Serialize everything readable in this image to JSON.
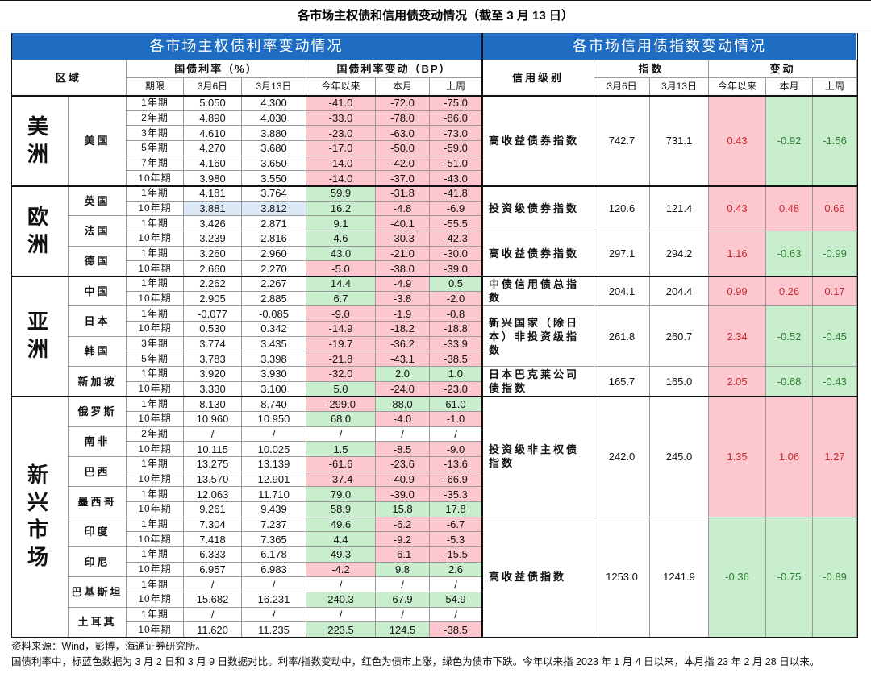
{
  "title": "各市场主权债和信用债变动情况（截至 3 月 13 日）",
  "left": {
    "header": "各市场主权债利率变动情况",
    "columns": {
      "region": "区域",
      "rate": "国债利率（%）",
      "change": "国债利率变动（BP）",
      "term": "期限",
      "d1": "3月6日",
      "d2": "3月13日",
      "ytd": "今年以来",
      "mtd": "本月",
      "wtd": "上周"
    },
    "colors": {
      "positive": "#c9eecd",
      "negative": "#fcc7ce",
      "highlight": "#dde9f6"
    },
    "regions": [
      {
        "name": "美洲",
        "countries": [
          {
            "name": "美国",
            "rows": [
              {
                "term": "1年期",
                "values": [
                  "5.050",
                  "4.300",
                  "-41.0",
                  "-72.0",
                  "-75.0"
                ]
              },
              {
                "term": "2年期",
                "values": [
                  "4.890",
                  "4.030",
                  "-33.0",
                  "-78.0",
                  "-86.0"
                ]
              },
              {
                "term": "3年期",
                "values": [
                  "4.610",
                  "3.880",
                  "-23.0",
                  "-63.0",
                  "-73.0"
                ]
              },
              {
                "term": "5年期",
                "values": [
                  "4.270",
                  "3.680",
                  "-17.0",
                  "-50.0",
                  "-59.0"
                ]
              },
              {
                "term": "7年期",
                "values": [
                  "4.160",
                  "3.650",
                  "-14.0",
                  "-42.0",
                  "-51.0"
                ]
              },
              {
                "term": "10年期",
                "values": [
                  "3.980",
                  "3.550",
                  "-14.0",
                  "-37.0",
                  "-43.0"
                ]
              }
            ]
          }
        ]
      },
      {
        "name": "欧洲",
        "countries": [
          {
            "name": "英国",
            "rows": [
              {
                "term": "1年期",
                "values": [
                  "4.181",
                  "3.764",
                  "59.9",
                  "-31.8",
                  "-41.8"
                ]
              },
              {
                "term": "10年期",
                "values": [
                  "3.881",
                  "3.812",
                  "16.2",
                  "-4.8",
                  "-6.9"
                ],
                "highlight": true
              }
            ]
          },
          {
            "name": "法国",
            "rows": [
              {
                "term": "1年期",
                "values": [
                  "3.426",
                  "2.871",
                  "9.1",
                  "-40.1",
                  "-55.5"
                ]
              },
              {
                "term": "10年期",
                "values": [
                  "3.239",
                  "2.816",
                  "4.6",
                  "-30.3",
                  "-42.3"
                ]
              }
            ]
          },
          {
            "name": "德国",
            "rows": [
              {
                "term": "1年期",
                "values": [
                  "3.260",
                  "2.960",
                  "43.0",
                  "-21.0",
                  "-30.0"
                ]
              },
              {
                "term": "10年期",
                "values": [
                  "2.660",
                  "2.270",
                  "-5.0",
                  "-38.0",
                  "-39.0"
                ]
              }
            ]
          }
        ]
      },
      {
        "name": "亚洲",
        "countries": [
          {
            "name": "中国",
            "rows": [
              {
                "term": "1年期",
                "values": [
                  "2.262",
                  "2.267",
                  "14.4",
                  "-4.9",
                  "0.5"
                ]
              },
              {
                "term": "10年期",
                "values": [
                  "2.905",
                  "2.885",
                  "6.7",
                  "-3.8",
                  "-2.0"
                ]
              }
            ]
          },
          {
            "name": "日本",
            "rows": [
              {
                "term": "1年期",
                "values": [
                  "-0.077",
                  "-0.085",
                  "-9.0",
                  "-1.9",
                  "-0.8"
                ]
              },
              {
                "term": "10年期",
                "values": [
                  "0.530",
                  "0.342",
                  "-14.9",
                  "-18.2",
                  "-18.8"
                ]
              }
            ]
          },
          {
            "name": "韩国",
            "rows": [
              {
                "term": "3年期",
                "values": [
                  "3.774",
                  "3.435",
                  "-19.7",
                  "-36.2",
                  "-33.9"
                ]
              },
              {
                "term": "5年期",
                "values": [
                  "3.783",
                  "3.398",
                  "-21.8",
                  "-43.1",
                  "-38.5"
                ]
              }
            ]
          },
          {
            "name": "新加坡",
            "rows": [
              {
                "term": "1年期",
                "values": [
                  "3.920",
                  "3.930",
                  "-32.0",
                  "2.0",
                  "1.0"
                ]
              },
              {
                "term": "10年期",
                "values": [
                  "3.330",
                  "3.100",
                  "5.0",
                  "-24.0",
                  "-23.0"
                ]
              }
            ]
          }
        ]
      },
      {
        "name": "新兴市场",
        "countries": [
          {
            "name": "俄罗斯",
            "rows": [
              {
                "term": "1年期",
                "values": [
                  "8.130",
                  "8.740",
                  "-299.0",
                  "88.0",
                  "61.0"
                ]
              },
              {
                "term": "10年期",
                "values": [
                  "10.960",
                  "10.950",
                  "68.0",
                  "-4.0",
                  "-1.0"
                ]
              }
            ]
          },
          {
            "name": "南非",
            "rows": [
              {
                "term": "2年期",
                "values": [
                  "/",
                  "/",
                  "/",
                  "/",
                  "/"
                ]
              },
              {
                "term": "10年期",
                "values": [
                  "10.115",
                  "10.025",
                  "1.5",
                  "-8.5",
                  "-9.0"
                ]
              }
            ]
          },
          {
            "name": "巴西",
            "rows": [
              {
                "term": "1年期",
                "values": [
                  "13.275",
                  "13.139",
                  "-61.6",
                  "-23.6",
                  "-13.6"
                ]
              },
              {
                "term": "10年期",
                "values": [
                  "13.570",
                  "12.901",
                  "-37.4",
                  "-40.9",
                  "-66.9"
                ]
              }
            ]
          },
          {
            "name": "墨西哥",
            "rows": [
              {
                "term": "1年期",
                "values": [
                  "12.063",
                  "11.710",
                  "79.0",
                  "-39.0",
                  "-35.3"
                ]
              },
              {
                "term": "10年期",
                "values": [
                  "9.261",
                  "9.439",
                  "58.9",
                  "15.8",
                  "17.8"
                ]
              }
            ]
          },
          {
            "name": "印度",
            "rows": [
              {
                "term": "1年期",
                "values": [
                  "7.304",
                  "7.237",
                  "49.6",
                  "-6.2",
                  "-6.7"
                ]
              },
              {
                "term": "10年期",
                "values": [
                  "7.418",
                  "7.365",
                  "4.4",
                  "-9.2",
                  "-5.3"
                ]
              }
            ]
          },
          {
            "name": "印尼",
            "rows": [
              {
                "term": "1年期",
                "values": [
                  "6.333",
                  "6.178",
                  "49.3",
                  "-6.1",
                  "-15.5"
                ]
              },
              {
                "term": "10年期",
                "values": [
                  "6.957",
                  "6.983",
                  "-4.2",
                  "9.8",
                  "2.6"
                ]
              }
            ]
          },
          {
            "name": "巴基斯坦",
            "rows": [
              {
                "term": "1年期",
                "values": [
                  "/",
                  "/",
                  "/",
                  "/",
                  "/"
                ]
              },
              {
                "term": "10年期",
                "values": [
                  "15.682",
                  "16.231",
                  "240.3",
                  "67.9",
                  "54.9"
                ]
              }
            ]
          },
          {
            "name": "土耳其",
            "rows": [
              {
                "term": "1年期",
                "values": [
                  "/",
                  "/",
                  "/",
                  "/",
                  "/"
                ]
              },
              {
                "term": "10年期",
                "values": [
                  "11.620",
                  "11.235",
                  "223.5",
                  "124.5",
                  "-38.5"
                ]
              }
            ]
          }
        ]
      }
    ]
  },
  "right": {
    "header": "各市场信用债指数变动情况",
    "columns": {
      "grade": "信用级别",
      "index": "指数",
      "change": "变动",
      "d1": "3月6日",
      "d2": "3月13日",
      "ytd": "今年以来",
      "mtd": "本月",
      "wtd": "上周"
    },
    "colors": {
      "positive": {
        "fill": "#fcc7ce",
        "text": "#c8282e"
      },
      "negative": {
        "fill": "#c9eecd",
        "text": "#2e7d32"
      }
    },
    "blocks": [
      {
        "name": "高收益债券指数",
        "values": [
          "742.7",
          "731.1",
          "0.43",
          "-0.92",
          "-1.56"
        ]
      },
      {
        "name": "投资级债券指数",
        "values": [
          "120.6",
          "121.4",
          "0.43",
          "0.48",
          "0.66"
        ]
      },
      {
        "name": "高收益债券指数",
        "values": [
          "297.1",
          "294.2",
          "1.16",
          "-0.63",
          "-0.99"
        ]
      },
      {
        "name": "中债信用债总指数",
        "values": [
          "204.1",
          "204.4",
          "0.99",
          "0.26",
          "0.17"
        ]
      },
      {
        "name": "新兴国家（除日本）非投资级指数",
        "values": [
          "261.8",
          "260.7",
          "2.34",
          "-0.52",
          "-0.45"
        ]
      },
      {
        "name": "日本巴克莱公司债指数",
        "values": [
          "165.7",
          "165.0",
          "2.05",
          "-0.68",
          "-0.43"
        ]
      },
      {
        "name": "投资级非主权债指数",
        "values": [
          "242.0",
          "245.0",
          "1.35",
          "1.06",
          "1.27"
        ]
      },
      {
        "name": "高收益债指数",
        "values": [
          "1253.0",
          "1241.9",
          "-0.36",
          "-0.75",
          "-0.89"
        ]
      }
    ]
  },
  "notes": [
    "资料来源：Wind，彭博，海通证券研究所。",
    "国债利率中，标蓝色数据为 3 月 2 日和 3 月 9 日数据对比。利率/指数变动中，红色为债市上涨，绿色为债市下跌。今年以来指 2023 年 1 月 4 日以来，本月指 23 年 2 月 28 日以来。"
  ]
}
